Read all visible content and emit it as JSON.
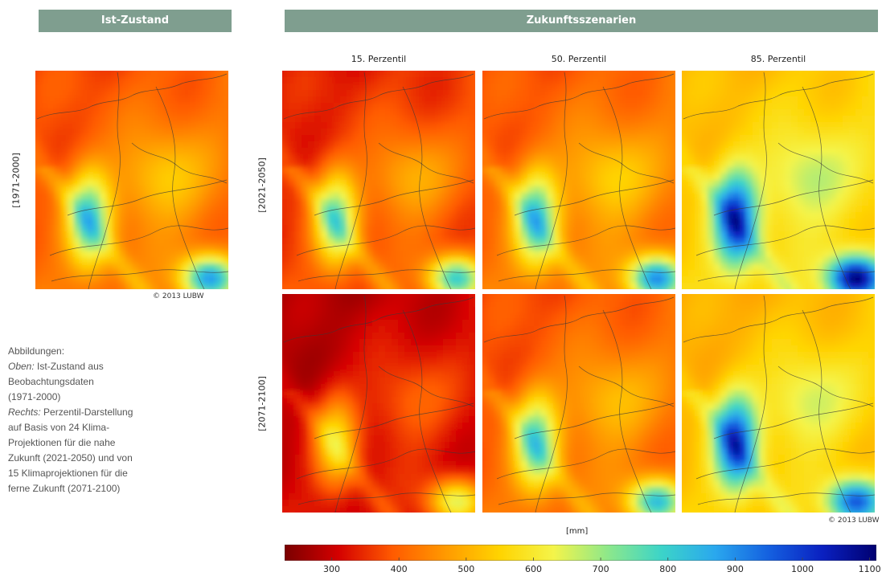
{
  "header": {
    "left": "Ist-Zustand",
    "right": "Zukunftsszenarien"
  },
  "columns": [
    "15. Perzentil",
    "50. Perzentil",
    "85. Perzentil"
  ],
  "rows": [
    "[1971-2000]",
    "[2021-2050]",
    "[2071-2100]"
  ],
  "copyright": "© 2013 LUBW",
  "caption": {
    "line1": "Abbildungen:",
    "line2_lead": "Oben:",
    "line2": " Ist-Zustand aus",
    "line3": "Beobachtungsdaten",
    "line4": "(1971-2000)",
    "line5_lead": "Rechts:",
    "line5": " Perzentil-Darstellung",
    "line6": "auf Basis von 24 Klima-",
    "line7": "Projektionen für die nahe",
    "line8": "Zukunft (2021-2050) und von",
    "line9": "15 Klimaprojektionen für die",
    "line10": "ferne Zukunft (2071-2100)"
  },
  "chart_data": {
    "type": "heatmap",
    "colorbar": {
      "unit": "[mm]",
      "range": [
        230,
        1110
      ],
      "ticks": [
        300,
        400,
        500,
        600,
        700,
        800,
        900,
        1000,
        1100
      ],
      "colors": [
        "#7a0000",
        "#d40000",
        "#ff5a00",
        "#ff9a00",
        "#ffd400",
        "#f4f44a",
        "#8ee88a",
        "#3cd4c8",
        "#2aa8ee",
        "#1460e0",
        "#0a20c0",
        "#000070"
      ]
    },
    "panels": [
      {
        "id": "ist",
        "row": "[1971-2000]",
        "column": "Ist-Zustand",
        "base": 420,
        "west_low": 780,
        "south_low": 880,
        "east_mid": 560
      },
      {
        "id": "p15-near",
        "row": "[2021-2050]",
        "column": "15. Perzentil",
        "base": 380,
        "west_low": 720,
        "south_low": 800,
        "east_mid": 520
      },
      {
        "id": "p50-near",
        "row": "[2021-2050]",
        "column": "50. Perzentil",
        "base": 430,
        "west_low": 790,
        "south_low": 900,
        "east_mid": 570
      },
      {
        "id": "p85-near",
        "row": "[2021-2050]",
        "column": "85. Perzentil",
        "base": 560,
        "west_low": 1000,
        "south_low": 1100,
        "east_mid": 700
      },
      {
        "id": "p15-far",
        "row": "[2071-2100]",
        "column": "15. Perzentil",
        "base": 320,
        "west_low": 560,
        "south_low": 640,
        "east_mid": 420
      },
      {
        "id": "p50-far",
        "row": "[2071-2100]",
        "column": "50. Perzentil",
        "base": 420,
        "west_low": 760,
        "south_low": 830,
        "east_mid": 540
      },
      {
        "id": "p85-far",
        "row": "[2071-2100]",
        "column": "85. Perzentil",
        "base": 540,
        "west_low": 980,
        "south_low": 960,
        "east_mid": 680
      }
    ]
  }
}
